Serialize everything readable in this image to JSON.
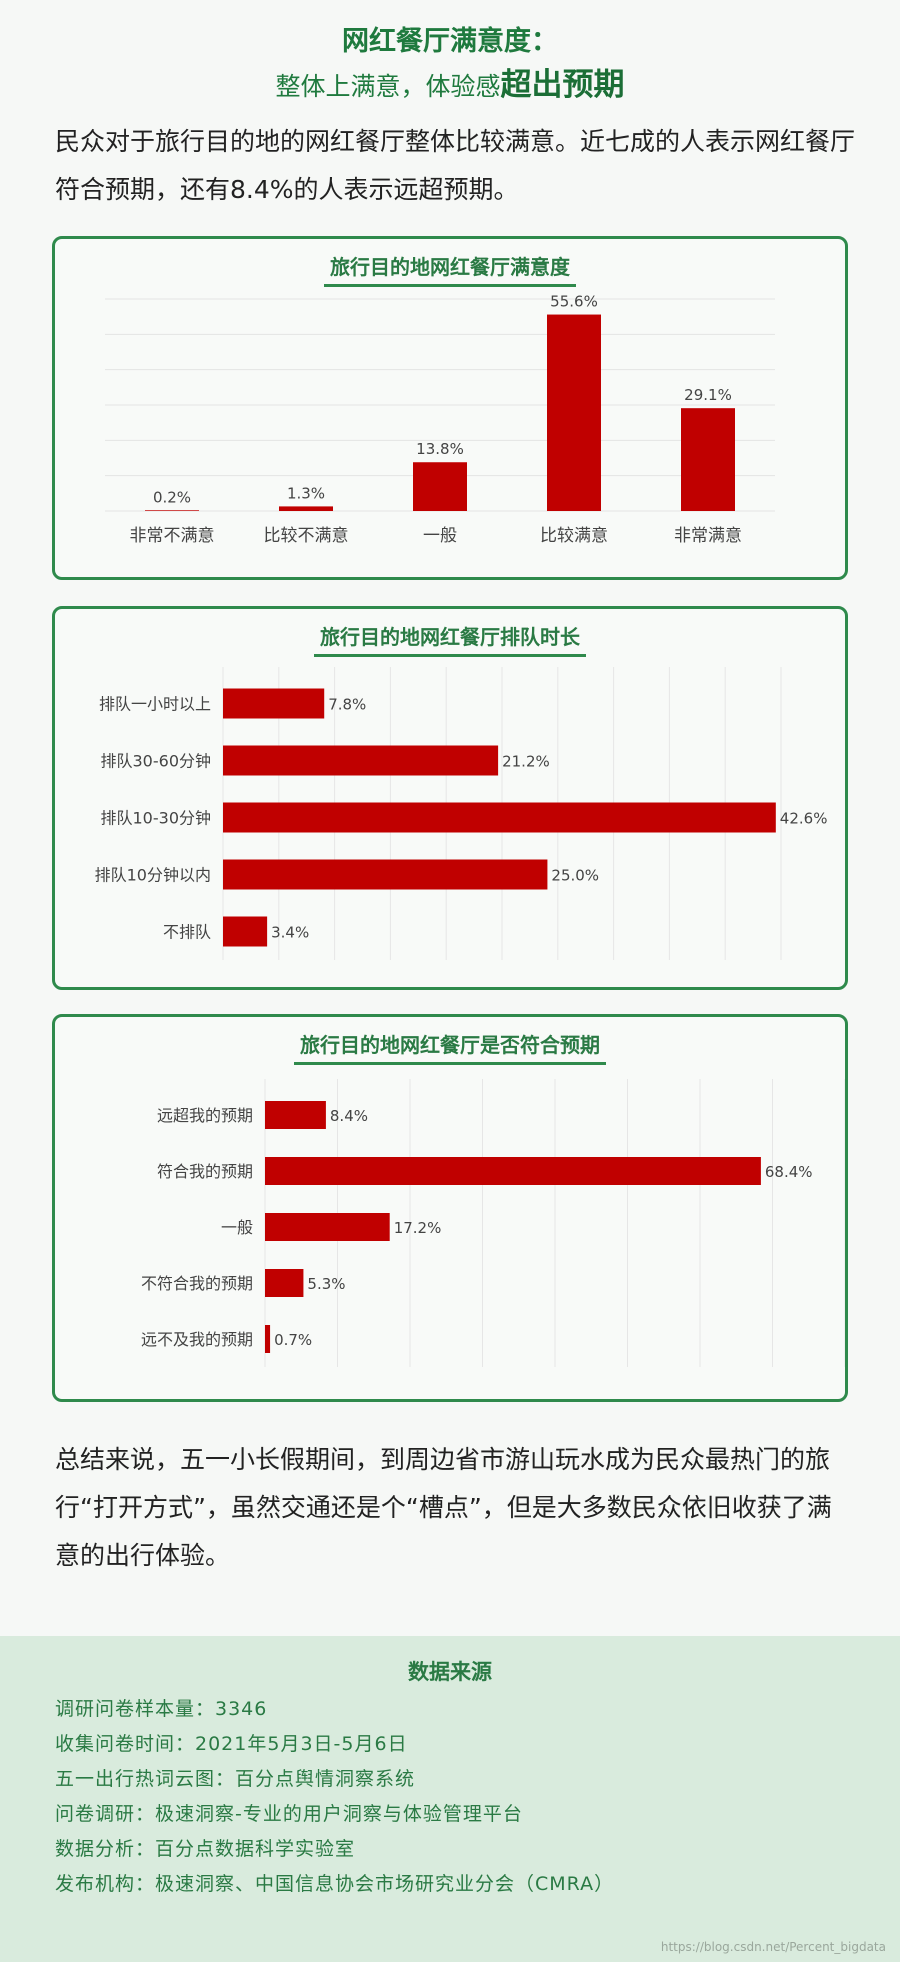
{
  "header": {
    "title": "网红餐厅满意度：",
    "subtitle_prefix": "整体上满意，体验感",
    "subtitle_emphasis": "超出预期"
  },
  "intro": "民众对于旅行目的地的网红餐厅整体比较满意。近七成的人表示网红餐厅符合预期，还有8.4%的人表示远超预期。",
  "chart_data": [
    {
      "type": "bar",
      "title": "旅行目的地网红餐厅满意度",
      "categories": [
        "非常不满意",
        "比较不满意",
        "一般",
        "比较满意",
        "非常满意"
      ],
      "values": [
        0.2,
        1.3,
        13.8,
        55.6,
        29.1
      ],
      "labels": [
        "0.2%",
        "1.3%",
        "13.8%",
        "55.6%",
        "29.1%"
      ],
      "ylim": [
        0,
        60
      ],
      "color": "#c00000"
    },
    {
      "type": "bar",
      "orientation": "horizontal",
      "title": "旅行目的地网红餐厅排队时长",
      "categories": [
        "排队一小时以上",
        "排队30-60分钟",
        "排队10-30分钟",
        "排队10分钟以内",
        "不排队"
      ],
      "values": [
        7.8,
        21.2,
        42.6,
        25.0,
        3.4
      ],
      "labels": [
        "7.8%",
        "21.2%",
        "42.6%",
        "25.0%",
        "3.4%"
      ],
      "xlim": [
        0,
        43
      ],
      "color": "#c00000"
    },
    {
      "type": "bar",
      "orientation": "horizontal",
      "title": "旅行目的地网红餐厅是否符合预期",
      "categories": [
        "远超我的预期",
        "符合我的预期",
        "一般",
        "不符合我的预期",
        "远不及我的预期"
      ],
      "values": [
        8.4,
        68.4,
        17.2,
        5.3,
        0.7
      ],
      "labels": [
        "8.4%",
        "68.4%",
        "17.2%",
        "5.3%",
        "0.7%"
      ],
      "xlim": [
        0,
        80
      ],
      "color": "#c00000"
    }
  ],
  "summary": "总结来说，五一小长假期间，到周边省市游山玩水成为民众最热门的旅行“打开方式”，虽然交通还是个“槽点”，但是大多数民众依旧收获了满意的出行体验。",
  "source": {
    "title": "数据来源",
    "lines": [
      "调研问卷样本量：3346",
      "收集问卷时间：2021年5月3日-5月6日",
      "五一出行热词云图：百分点舆情洞察系统",
      "问卷调研：极速洞察-专业的用户洞察与体验管理平台",
      "数据分析：百分点数据科学实验室",
      "发布机构：极速洞察、中国信息协会市场研究业分会（CMRA）"
    ]
  },
  "watermark": "https://blog.csdn.net/Percent_bigdata"
}
